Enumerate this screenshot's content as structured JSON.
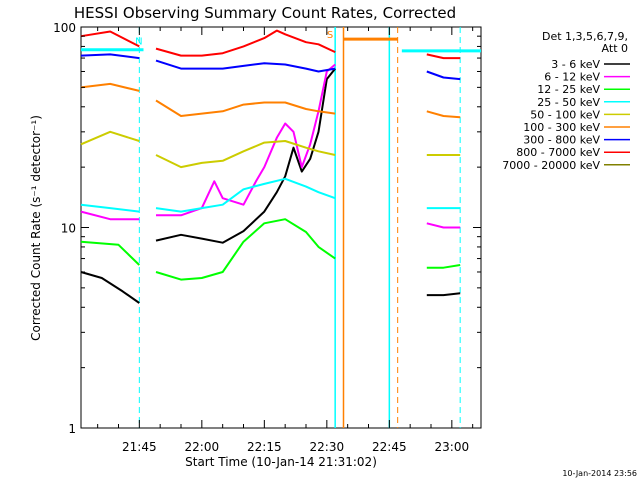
{
  "chart_data": {
    "type": "line",
    "title": "HESSI Observing Summary Count Rates, Corrected",
    "xlabel": "Start Time (10-Jan-14 21:31:02)",
    "ylabel": "Corrected Count Rate (s⁻¹ detector⁻¹)",
    "yscale": "log",
    "ylim": [
      1,
      100
    ],
    "y_ticks": [
      "1",
      "10",
      "100"
    ],
    "xlim": [
      "21:31",
      "23:07"
    ],
    "x_ticks": [
      "21:45",
      "22:00",
      "22:15",
      "22:30",
      "22:45",
      "23:00"
    ],
    "footer_timestamp": "10-Jan-2014 23:56",
    "legend_header": [
      "Det 1,3,5,6,7,9,",
      "Att 0"
    ],
    "flag_labels": [
      "N",
      "S"
    ],
    "series": [
      {
        "name": "3 - 6 keV",
        "color": "#000000",
        "points": [
          [
            "21:31",
            6
          ],
          [
            "21:36",
            5.6
          ],
          [
            "21:41",
            4.8
          ],
          [
            "21:45",
            4.2
          ],
          [
            "21:46",
            null
          ],
          [
            "21:49",
            8.6
          ],
          [
            "21:55",
            9.2
          ],
          [
            "22:00",
            8.8
          ],
          [
            "22:05",
            8.4
          ],
          [
            "22:10",
            9.6
          ],
          [
            "22:15",
            12
          ],
          [
            "22:18",
            15
          ],
          [
            "22:20",
            18
          ],
          [
            "22:22",
            25
          ],
          [
            "22:24",
            19
          ],
          [
            "22:26",
            22
          ],
          [
            "22:28",
            30
          ],
          [
            "22:30",
            55
          ],
          [
            "22:32",
            62
          ],
          [
            "22:32",
            null
          ],
          [
            "22:54",
            4.6
          ],
          [
            "22:58",
            4.6
          ],
          [
            "23:02",
            4.7
          ]
        ]
      },
      {
        "name": "6 - 12 keV",
        "color": "#ff00ff",
        "points": [
          [
            "21:31",
            12
          ],
          [
            "21:38",
            11
          ],
          [
            "21:45",
            11
          ],
          [
            "21:46",
            null
          ],
          [
            "21:49",
            11.5
          ],
          [
            "21:55",
            11.5
          ],
          [
            "22:00",
            12.5
          ],
          [
            "22:03",
            17
          ],
          [
            "22:05",
            14
          ],
          [
            "22:10",
            13
          ],
          [
            "22:13",
            17
          ],
          [
            "22:15",
            20
          ],
          [
            "22:18",
            28
          ],
          [
            "22:20",
            33
          ],
          [
            "22:22",
            30
          ],
          [
            "22:24",
            20
          ],
          [
            "22:26",
            26
          ],
          [
            "22:28",
            38
          ],
          [
            "22:30",
            60
          ],
          [
            "22:32",
            65
          ],
          [
            "22:32",
            null
          ],
          [
            "22:54",
            10.5
          ],
          [
            "22:58",
            10
          ],
          [
            "23:02",
            10
          ]
        ]
      },
      {
        "name": "12 - 25 keV",
        "color": "#00ff00",
        "points": [
          [
            "21:31",
            8.5
          ],
          [
            "21:40",
            8.2
          ],
          [
            "21:45",
            6.5
          ],
          [
            "21:46",
            null
          ],
          [
            "21:49",
            6
          ],
          [
            "21:55",
            5.5
          ],
          [
            "22:00",
            5.6
          ],
          [
            "22:05",
            6
          ],
          [
            "22:10",
            8.5
          ],
          [
            "22:15",
            10.5
          ],
          [
            "22:20",
            11
          ],
          [
            "22:25",
            9.5
          ],
          [
            "22:28",
            8
          ],
          [
            "22:32",
            7
          ],
          [
            "22:32",
            null
          ],
          [
            "22:54",
            6.3
          ],
          [
            "22:58",
            6.3
          ],
          [
            "23:02",
            6.5
          ]
        ]
      },
      {
        "name": "25 - 50 keV",
        "color": "#00ffff",
        "points": [
          [
            "21:31",
            13
          ],
          [
            "21:38",
            12.5
          ],
          [
            "21:45",
            12
          ],
          [
            "21:46",
            null
          ],
          [
            "21:49",
            12.5
          ],
          [
            "21:55",
            12
          ],
          [
            "22:00",
            12.5
          ],
          [
            "22:05",
            13
          ],
          [
            "22:10",
            15.5
          ],
          [
            "22:15",
            16.5
          ],
          [
            "22:20",
            17.5
          ],
          [
            "22:25",
            16
          ],
          [
            "22:28",
            15
          ],
          [
            "22:32",
            14
          ],
          [
            "22:32",
            null
          ],
          [
            "22:54",
            12.5
          ],
          [
            "22:58",
            12.5
          ],
          [
            "23:02",
            12.5
          ]
        ]
      },
      {
        "name": "50 - 100 keV",
        "color": "#cccc00",
        "points": [
          [
            "21:31",
            26
          ],
          [
            "21:38",
            30
          ],
          [
            "21:45",
            27
          ],
          [
            "21:46",
            null
          ],
          [
            "21:49",
            23
          ],
          [
            "21:55",
            20
          ],
          [
            "22:00",
            21
          ],
          [
            "22:05",
            21.5
          ],
          [
            "22:10",
            24
          ],
          [
            "22:15",
            26.5
          ],
          [
            "22:20",
            27
          ],
          [
            "22:25",
            25
          ],
          [
            "22:28",
            24
          ],
          [
            "22:32",
            23
          ],
          [
            "22:32",
            null
          ],
          [
            "22:54",
            23
          ],
          [
            "22:58",
            23
          ],
          [
            "23:02",
            23
          ]
        ]
      },
      {
        "name": "100 - 300 keV",
        "color": "#ff8000",
        "points": [
          [
            "21:31",
            50
          ],
          [
            "21:38",
            52
          ],
          [
            "21:45",
            48
          ],
          [
            "21:46",
            null
          ],
          [
            "21:49",
            43
          ],
          [
            "21:55",
            36
          ],
          [
            "22:00",
            37
          ],
          [
            "22:05",
            38
          ],
          [
            "22:10",
            41
          ],
          [
            "22:15",
            42
          ],
          [
            "22:20",
            42
          ],
          [
            "22:25",
            39
          ],
          [
            "22:28",
            38
          ],
          [
            "22:32",
            37
          ],
          [
            "22:32",
            null
          ],
          [
            "22:54",
            38
          ],
          [
            "22:58",
            36
          ],
          [
            "23:02",
            35.5
          ]
        ]
      },
      {
        "name": "300 - 800 keV",
        "color": "#0000ff",
        "points": [
          [
            "21:31",
            72
          ],
          [
            "21:38",
            73
          ],
          [
            "21:45",
            70
          ],
          [
            "21:46",
            null
          ],
          [
            "21:49",
            68
          ],
          [
            "21:55",
            62
          ],
          [
            "22:00",
            62
          ],
          [
            "22:05",
            62
          ],
          [
            "22:10",
            64
          ],
          [
            "22:15",
            66
          ],
          [
            "22:20",
            65
          ],
          [
            "22:25",
            62
          ],
          [
            "22:28",
            60
          ],
          [
            "22:32",
            62
          ],
          [
            "22:32",
            null
          ],
          [
            "22:54",
            60
          ],
          [
            "22:58",
            56
          ],
          [
            "23:02",
            55
          ]
        ]
      },
      {
        "name": "800 - 7000 keV",
        "color": "#ff0000",
        "points": [
          [
            "21:31",
            90
          ],
          [
            "21:38",
            95
          ],
          [
            "21:45",
            80
          ],
          [
            "21:46",
            null
          ],
          [
            "21:49",
            78
          ],
          [
            "21:55",
            72
          ],
          [
            "22:00",
            72
          ],
          [
            "22:05",
            74
          ],
          [
            "22:10",
            80
          ],
          [
            "22:15",
            88
          ],
          [
            "22:18",
            96
          ],
          [
            "22:20",
            92
          ],
          [
            "22:25",
            84
          ],
          [
            "22:28",
            82
          ],
          [
            "22:32",
            75
          ],
          [
            "22:32",
            null
          ],
          [
            "22:54",
            73
          ],
          [
            "22:58",
            70
          ],
          [
            "23:02",
            70
          ]
        ]
      },
      {
        "name": "7000 - 20000 keV",
        "color": "#808000",
        "points": []
      }
    ]
  }
}
